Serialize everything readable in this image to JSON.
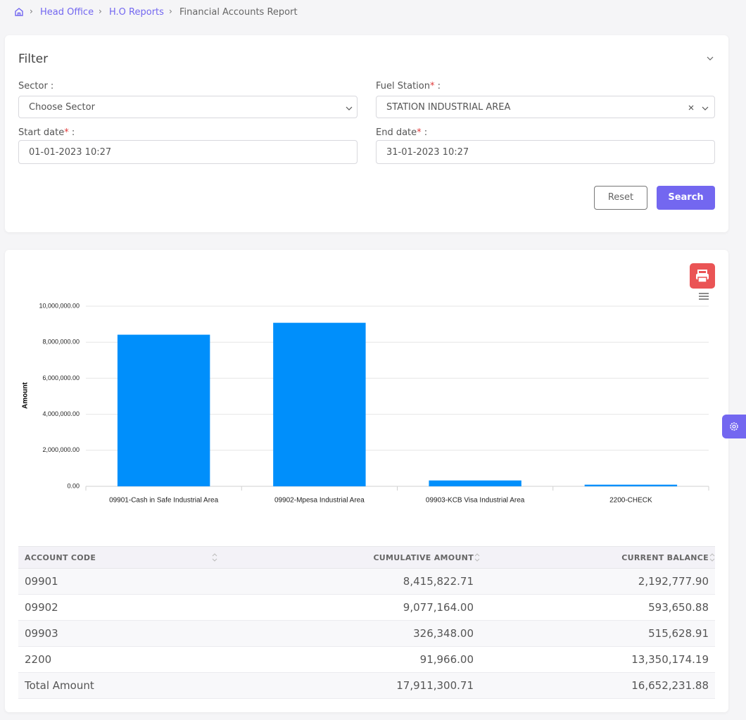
{
  "breadcrumb": {
    "items": [
      "Head Office",
      "H.O Reports",
      "Financial Accounts Report"
    ]
  },
  "filter": {
    "title": "Filter",
    "fields": [
      {
        "label": "Sector :",
        "value": "Choose Sector"
      },
      {
        "label": "Fuel Station",
        "mark": "*",
        "colon": " :",
        "value": "STATION INDUSTRIAL AREA"
      },
      {
        "label": "Start date",
        "mark": "*",
        "colon": " :",
        "value": "01-01-2023 10:27"
      },
      {
        "label": "End date",
        "mark": "*",
        "colon": " :",
        "value": "31-01-2023 10:27"
      }
    ],
    "buttons": [
      "Reset",
      "Search"
    ]
  },
  "chart_data": {
    "type": "bar",
    "y_label": "Amount",
    "categories": [
      "09901-Cash in Safe Industrial Area",
      "09902-Mpesa Industrial Area",
      "09903-KCB Visa Industrial Area",
      "2200-CHECK"
    ],
    "values": [
      8415822.71,
      9077164,
      326348,
      91966
    ],
    "color": "#008ffb",
    "ylim": [
      0,
      10000000
    ],
    "yticks": [
      {
        "value": 0,
        "label": "0.00"
      },
      {
        "value": 2000000,
        "label": "2,000,000.00"
      },
      {
        "value": 4000000,
        "label": "4,000,000.00"
      },
      {
        "value": 6000000,
        "label": "6,000,000.00"
      },
      {
        "value": 8000000,
        "label": "8,000,000.00"
      },
      {
        "value": 10000000,
        "label": "10,000,000.00"
      }
    ],
    "grid": true
  },
  "table": {
    "columns": [
      "ACCOUNT CODE",
      "CUMULATIVE AMOUNT",
      "CURRENT BALANCE"
    ],
    "rows": [
      [
        "09901",
        "8,415,822.71",
        "2,192,777.90"
      ],
      [
        "09902",
        "9,077,164.00",
        "593,650.88"
      ],
      [
        "09903",
        "326,348.00",
        "515,628.91"
      ],
      [
        "2200",
        "91,966.00",
        "13,350,174.19"
      ],
      [
        "Total Amount",
        "17,911,300.71",
        "16,652,231.88"
      ]
    ]
  }
}
